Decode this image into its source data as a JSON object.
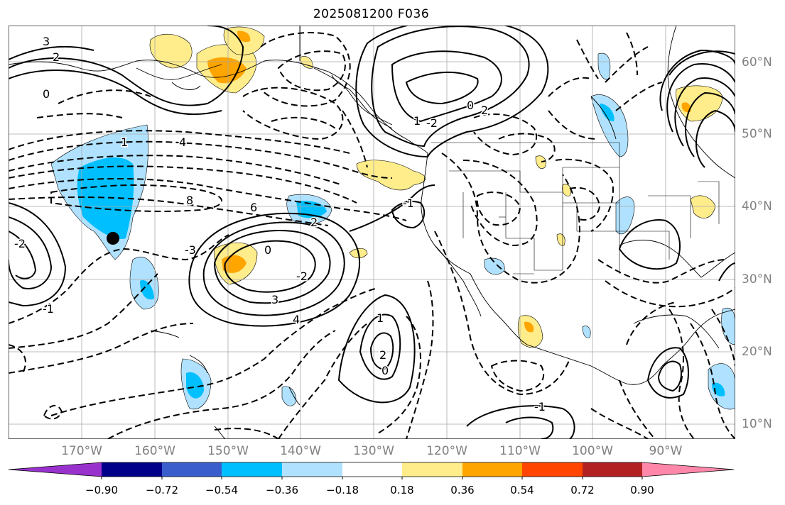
{
  "title": "2025081200 F036",
  "axes": {
    "longitude_labels": [
      "170°W",
      "160°W",
      "150°W",
      "140°W",
      "130°W",
      "120°W",
      "110°W",
      "100°W",
      "90°W"
    ],
    "latitude_labels": [
      "60°N",
      "50°N",
      "40°N",
      "30°N",
      "20°N",
      "10°N"
    ],
    "grid": true
  },
  "colorbar": {
    "tick_labels": [
      "−0.90",
      "−0.72",
      "−0.54",
      "−0.36",
      "−0.18",
      "0.18",
      "0.36",
      "0.54",
      "0.72",
      "0.90"
    ],
    "colors": [
      "#9932cc",
      "#00008b",
      "#3a5fcd",
      "#00bfff",
      "#b0e2ff",
      "#ffffff",
      "#ffec8b",
      "#ffa500",
      "#ff4500",
      "#b22222",
      "#ff88aa"
    ],
    "extend": "both"
  },
  "map": {
    "contour_labels": [
      "3",
      "2",
      "0",
      "-2",
      "-1",
      "1",
      "4",
      "8",
      "6",
      "-3",
      "2",
      "0",
      "-2",
      "3",
      "4",
      "2",
      "1",
      "0",
      "-1",
      "-2",
      "1",
      "2",
      "0",
      "-1"
    ],
    "marker": "black-dot"
  }
}
